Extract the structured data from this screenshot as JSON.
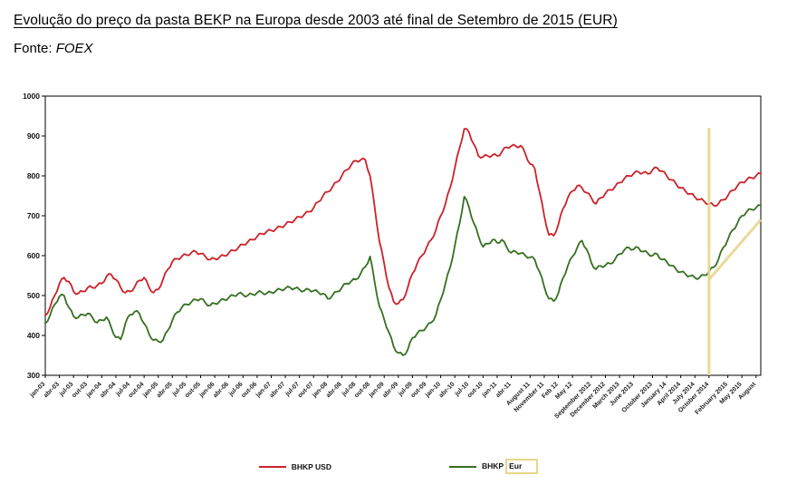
{
  "header": {
    "title": "Evolução do preço da pasta BEKP na Europa desde 2003 até final de Setembro de 2015 (EUR)",
    "source_label": "Fonte:",
    "source_name": "FOEX"
  },
  "legend": {
    "usd": {
      "label": "BHKP USD",
      "color": "#cc2229"
    },
    "eur": {
      "label_prefix": "BHKP",
      "label_highlighted": "Eur",
      "color": "#35701f"
    }
  },
  "chart_data": {
    "type": "line",
    "title": "Evolução do preço da pasta BEKP na Europa desde 2003 até final de Setembro de 2015 (EUR)",
    "xlabel": "",
    "ylabel": "",
    "ylim": [
      300,
      1000
    ],
    "y_ticks": [
      300,
      400,
      500,
      600,
      700,
      800,
      900,
      1000
    ],
    "grid": false,
    "legend_position": "bottom",
    "x_unit": "month (Jan 2003 – Sep 2015)",
    "x_ticks": [
      {
        "label": "jan-03",
        "i": 0
      },
      {
        "label": "abr-03",
        "i": 3
      },
      {
        "label": "jul-03",
        "i": 6
      },
      {
        "label": "out-03",
        "i": 9
      },
      {
        "label": "jan-04",
        "i": 12
      },
      {
        "label": "abr-04",
        "i": 15
      },
      {
        "label": "jul-04",
        "i": 18
      },
      {
        "label": "out-04",
        "i": 21
      },
      {
        "label": "jan-05",
        "i": 24
      },
      {
        "label": "abr-05",
        "i": 27
      },
      {
        "label": "jul-05",
        "i": 30
      },
      {
        "label": "out-05",
        "i": 33
      },
      {
        "label": "jan-06",
        "i": 36
      },
      {
        "label": "abr-06",
        "i": 39
      },
      {
        "label": "jul-06",
        "i": 42
      },
      {
        "label": "out-06",
        "i": 45
      },
      {
        "label": "jan-07",
        "i": 48
      },
      {
        "label": "abr-07",
        "i": 51
      },
      {
        "label": "jul-07",
        "i": 54
      },
      {
        "label": "out-07",
        "i": 57
      },
      {
        "label": "jan-08",
        "i": 60
      },
      {
        "label": "abr-08",
        "i": 63
      },
      {
        "label": "jul-08",
        "i": 66
      },
      {
        "label": "out-08",
        "i": 69
      },
      {
        "label": "jan-09",
        "i": 72
      },
      {
        "label": "abr-09",
        "i": 75
      },
      {
        "label": "jul-09",
        "i": 78
      },
      {
        "label": "out-09",
        "i": 81
      },
      {
        "label": "jan-10",
        "i": 84
      },
      {
        "label": "abr-10",
        "i": 87
      },
      {
        "label": "jul-10",
        "i": 90
      },
      {
        "label": "out-10",
        "i": 93
      },
      {
        "label": "jan-11",
        "i": 96
      },
      {
        "label": "abr-11",
        "i": 99
      },
      {
        "label": "August 11",
        "i": 103
      },
      {
        "label": "November 11",
        "i": 106
      },
      {
        "label": "Feb 12",
        "i": 109
      },
      {
        "label": "May 12",
        "i": 112
      },
      {
        "label": "September 2012",
        "i": 116
      },
      {
        "label": "December 2012",
        "i": 119
      },
      {
        "label": "March 2013",
        "i": 122
      },
      {
        "label": "June 2013",
        "i": 125
      },
      {
        "label": "October 2013",
        "i": 129
      },
      {
        "label": "January 14",
        "i": 132
      },
      {
        "label": "April 2014",
        "i": 135
      },
      {
        "label": "July 2014",
        "i": 138
      },
      {
        "label": "October 2014",
        "i": 141
      },
      {
        "label": "February 2015",
        "i": 145
      },
      {
        "label": "May 2015",
        "i": 148
      },
      {
        "label": "August",
        "i": 151
      }
    ],
    "series": [
      {
        "name": "BHKP USD",
        "color": "#cc2229",
        "values": [
          450,
          470,
          500,
          530,
          545,
          535,
          510,
          505,
          510,
          520,
          520,
          525,
          530,
          548,
          553,
          540,
          520,
          507,
          510,
          522,
          538,
          545,
          522,
          507,
          515,
          540,
          565,
          585,
          592,
          598,
          602,
          607,
          610,
          605,
          598,
          590,
          592,
          596,
          600,
          607,
          613,
          620,
          628,
          634,
          640,
          648,
          655,
          660,
          663,
          667,
          672,
          678,
          684,
          690,
          697,
          703,
          710,
          720,
          735,
          750,
          760,
          772,
          785,
          800,
          815,
          828,
          838,
          840,
          840,
          800,
          720,
          635,
          580,
          520,
          485,
          480,
          490,
          520,
          555,
          580,
          600,
          620,
          640,
          665,
          700,
          730,
          770,
          820,
          870,
          918,
          910,
          880,
          850,
          848,
          850,
          852,
          850,
          860,
          872,
          875,
          874,
          876,
          855,
          830,
          818,
          760,
          700,
          652,
          650,
          678,
          718,
          745,
          762,
          775,
          770,
          758,
          745,
          730,
          745,
          756,
          765,
          772,
          783,
          793,
          800,
          806,
          810,
          808,
          805,
          815,
          820,
          812,
          800,
          790,
          780,
          770,
          762,
          755,
          747,
          741,
          736,
          730,
          726,
          730,
          740,
          750,
          764,
          774,
          784,
          790,
          795,
          800,
          806
        ]
      },
      {
        "name": "BHKP Eur",
        "color": "#35701f",
        "values": [
          430,
          450,
          478,
          498,
          500,
          470,
          448,
          445,
          452,
          455,
          445,
          432,
          438,
          446,
          420,
          395,
          390,
          430,
          452,
          460,
          455,
          430,
          405,
          388,
          385,
          388,
          412,
          438,
          458,
          470,
          478,
          483,
          490,
          492,
          482,
          475,
          480,
          485,
          490,
          495,
          500,
          505,
          502,
          500,
          503,
          507,
          508,
          505,
          508,
          512,
          515,
          518,
          520,
          518,
          515,
          512,
          515,
          512,
          508,
          505,
          492,
          500,
          510,
          520,
          530,
          536,
          540,
          555,
          572,
          598,
          532,
          472,
          440,
          408,
          372,
          356,
          350,
          364,
          394,
          405,
          412,
          422,
          432,
          452,
          490,
          530,
          570,
          625,
          680,
          748,
          722,
          682,
          650,
          622,
          630,
          640,
          632,
          640,
          622,
          607,
          610,
          606,
          600,
          596,
          590,
          560,
          522,
          492,
          486,
          506,
          544,
          574,
          598,
          620,
          638,
          616,
          582,
          566,
          574,
          576,
          580,
          590,
          604,
          614,
          620,
          616,
          620,
          610,
          606,
          600,
          604,
          590,
          585,
          575,
          566,
          559,
          554,
          549,
          545,
          545,
          551,
          560,
          571,
          590,
          620,
          640,
          664,
          680,
          700,
          710,
          716,
          720,
          726
        ]
      }
    ],
    "annotations": {
      "color": "#e7d78c",
      "vertical_line": {
        "month_index": 141,
        "from_value": 920,
        "to_value": 300
      },
      "trend_line": {
        "from": {
          "month_index": 141,
          "value": 540
        },
        "to": {
          "month_index": 152,
          "value": 690
        }
      },
      "legend_highlight": "Eur"
    }
  }
}
